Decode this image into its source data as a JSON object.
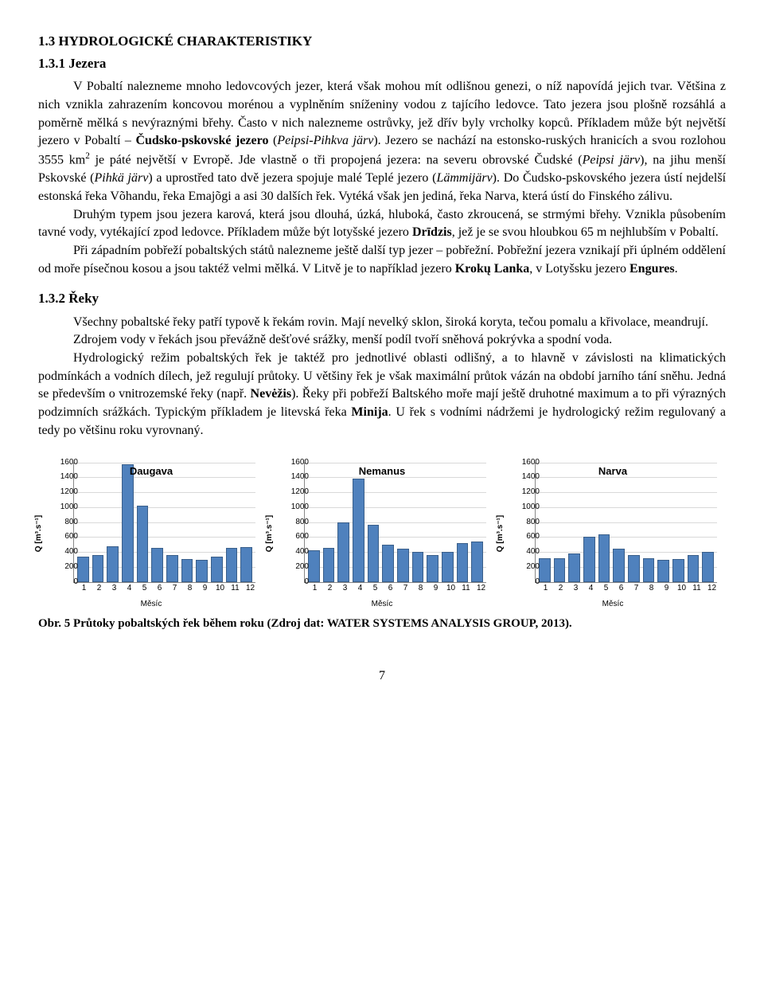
{
  "headings": {
    "section": "1.3 HYDROLOGICKÉ CHARAKTERISTIKY",
    "sub1": "1.3.1 Jezera",
    "sub2": "1.3.2 Řeky"
  },
  "body": {
    "p1": "V Pobaltí nalezneme mnoho ledovcových jezer, která však mohou mít odlišnou genezi, o níž napovídá jejich tvar. Většina z nich vznikla zahrazením koncovou morénou a vyplněním sníženiny vodou z tajícího ledovce. Tato jezera jsou plošně rozsáhlá a poměrně mělká s nevýraznými břehy. Často v nich nalezneme ostrůvky, jež dřív byly vrcholky kopců. Příkladem může být největší jezero v Pobaltí – Čudsko-pskovské jezero (Peipsi-Pihkva järv). Jezero se nachází na estonsko-ruských hranicích a svou rozlohou 3555 km² je páté největší v Evropě. Jde vlastně o tři propojená jezera: na severu obrovské Čudské (Peipsi järv), na jihu menší Pskovské (Pihkä järv) a uprostřed tato dvě jezera spojuje malé Teplé jezero (Lämmijärv). Do Čudsko-pskovského jezera ústí nejdelší estonská řeka Võhandu, řeka Emajõgi a asi 30 dalších řek. Vytéká však jen jediná, řeka Narva, která ústí do Finského zálivu.",
    "p2": "Druhým typem jsou jezera karová, která jsou dlouhá, úzká, hluboká, často zkroucená, se strmými břehy. Vznikla působením tavné vody, vytékající zpod ledovce. Příkladem může být lotyšské jezero Drīdzis, jež je se svou hloubkou 65 m nejhlubším v Pobaltí.",
    "p3": "Při západním pobřeží pobaltských států nalezneme ještě další typ jezer – pobřežní. Pobřežní jezera vznikají při úplném oddělení od moře písečnou kosou a jsou taktéž velmi mělká. V Litvě je to například jezero Krokų Lanka, v Lotyšsku jezero Engures.",
    "p4": "Všechny pobaltské řeky patří typově k řekám rovin. Mají nevelký sklon, široká koryta, tečou pomalu a křivolace, meandrují.",
    "p5": "Zdrojem vody v řekách jsou převážně dešťové srážky, menší podíl tvoří sněhová pokrývka a spodní voda.",
    "p6": "Hydrologický režim pobaltských řek je taktéž pro jednotlivé oblasti odlišný, a to hlavně v závislosti na klimatických podmínkách a vodních dílech, jež regulují průtoky. U většiny řek je však maximální průtok vázán na období jarního tání sněhu. Jedná se především o vnitrozemské řeky (např. Nevėžis). Řeky při pobřeží Baltského moře mají ještě druhotné maximum a to při výrazných podzimních srážkách. Typickým příkladem je litevská řeka Minija. U řek s vodními nádržemi je hydrologický režim regulovaný a tedy po většinu roku vyrovnaný."
  },
  "charts": {
    "ymax": 1600,
    "ytick_step": 200,
    "categories": [
      1,
      2,
      3,
      4,
      5,
      6,
      7,
      8,
      9,
      10,
      11,
      12
    ],
    "bar_fill": "#4f81bd",
    "bar_border": "#3a5f8a",
    "grid_color": "#d9d9d9",
    "axis_color": "#888888",
    "y_label": "Q [m³.s⁻¹]",
    "x_label": "Měsíc",
    "series": [
      {
        "title": "Daugava",
        "values": [
          340,
          360,
          480,
          1580,
          1020,
          460,
          360,
          310,
          300,
          340,
          460,
          470
        ]
      },
      {
        "title": "Nemanus",
        "values": [
          420,
          460,
          800,
          1380,
          760,
          500,
          440,
          400,
          360,
          400,
          520,
          540
        ]
      },
      {
        "title": "Narva",
        "values": [
          320,
          320,
          380,
          600,
          640,
          440,
          360,
          320,
          300,
          310,
          360,
          400
        ]
      }
    ]
  },
  "caption": "Obr. 5 Průtoky pobaltských řek během roku (Zdroj dat: WATER SYSTEMS ANALYSIS GROUP, 2013).",
  "page_number": "7"
}
